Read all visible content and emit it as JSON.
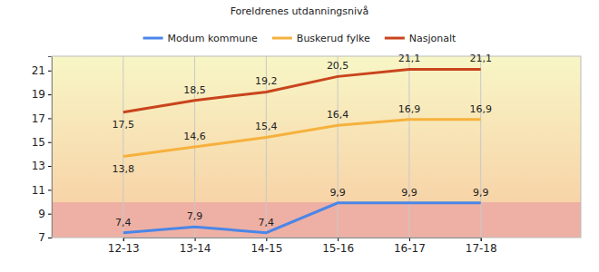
{
  "chart_data": {
    "type": "line",
    "title": "Foreldrenes utdanningsnivå",
    "categories": [
      "12-13",
      "13-14",
      "14-15",
      "15-16",
      "16-17",
      "17-18"
    ],
    "series": [
      {
        "name": "Modum kommune",
        "color": "#4a86e8",
        "values": [
          7.4,
          7.9,
          7.4,
          9.9,
          9.9,
          9.9
        ],
        "value_labels": [
          "7,4",
          "7,9",
          "7,4",
          "9,9",
          "9,9",
          "9,9"
        ]
      },
      {
        "name": "Buskerud fylke",
        "color": "#f6b13d",
        "values": [
          13.8,
          14.6,
          15.4,
          16.4,
          16.9,
          16.9
        ],
        "value_labels": [
          "13,8",
          "14,6",
          "15,4",
          "16,4",
          "16,9",
          "16,9"
        ]
      },
      {
        "name": "Nasjonalt",
        "color": "#c9441c",
        "values": [
          17.5,
          18.5,
          19.2,
          20.5,
          21.1,
          21.1
        ],
        "value_labels": [
          "17,5",
          "18,5",
          "19,2",
          "20,5",
          "21,1",
          "21,1"
        ]
      }
    ],
    "ylim": [
      7,
      22.2
    ],
    "yticks": [
      7,
      9,
      11,
      13,
      15,
      17,
      19,
      21
    ],
    "grid": true,
    "data_labels": true,
    "legend": "top"
  }
}
